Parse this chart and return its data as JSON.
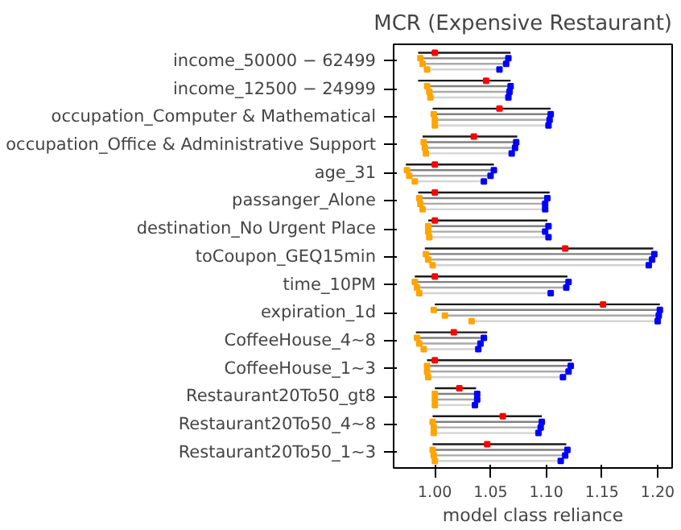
{
  "chart_data": {
    "type": "bar",
    "orientation": "horizontal",
    "title": "MCR (Expensive Restaurant)",
    "xlabel": "model class reliance",
    "categories": [
      "income_50000 − 62499",
      "income_12500 − 24999",
      "occupation_Computer & Mathematical",
      "occupation_Office & Administrative Support",
      "age_31",
      "passanger_Alone",
      "destination_No Urgent Place",
      "toCoupon_GEQ15min",
      "time_10PM",
      "expiration_1d",
      "CoffeeHouse_4~8",
      "CoffeeHouse_1~3",
      "Restaurant20To50_gt8",
      "Restaurant20To50_4~8",
      "Restaurant20To50_1~3"
    ],
    "xlim": [
      0.963,
      1.213
    ],
    "xticks": [
      {
        "value": 1.0,
        "label": "1.00"
      },
      {
        "value": 1.05,
        "label": "1.05"
      },
      {
        "value": 1.1,
        "label": "1.10"
      },
      {
        "value": 1.15,
        "label": "1.15"
      },
      {
        "value": 1.2,
        "label": "1.20"
      }
    ],
    "grid": false,
    "series": [
      {
        "color": "#1a1a1a",
        "base": [
          0.985,
          0.985,
          0.998,
          0.989,
          0.974,
          0.985,
          0.994,
          0.991,
          0.982,
          1.0,
          0.983,
          0.993,
          1.0,
          0.998,
          0.998
        ],
        "values": [
          0.083,
          0.083,
          0.106,
          0.085,
          0.079,
          0.118,
          0.107,
          0.205,
          0.137,
          0.202,
          0.064,
          0.13,
          0.037,
          0.098,
          0.12
        ]
      },
      {
        "type": "scatter",
        "color": "#ff0000",
        "values": [
          1.0,
          1.046,
          1.058,
          1.035,
          1.0,
          1.0,
          1.0,
          1.117,
          1.0,
          1.151,
          1.017,
          1.0,
          1.022,
          1.061,
          1.047
        ]
      },
      {
        "color": "#808080",
        "base": [
          0.987,
          0.993,
          0.999,
          0.99,
          0.975,
          0.986,
          0.994,
          0.992,
          0.982,
          0.999,
          0.984,
          0.993,
          1.0,
          0.998,
          0.998
        ],
        "values": [
          0.079,
          0.075,
          0.105,
          0.083,
          0.078,
          0.115,
          0.108,
          0.205,
          0.138,
          0.203,
          0.06,
          0.129,
          0.038,
          0.098,
          0.121
        ]
      },
      {
        "type": "scatter",
        "color": "#ffa500",
        "values": [
          0.987,
          0.993,
          0.999,
          0.99,
          0.975,
          0.986,
          0.994,
          0.992,
          0.982,
          0.999,
          0.984,
          0.993,
          1.0,
          0.998,
          0.998
        ]
      },
      {
        "type": "scatter",
        "color": "#0000ff",
        "values": [
          1.066,
          1.068,
          1.104,
          1.073,
          1.053,
          1.101,
          1.102,
          1.197,
          1.12,
          1.202,
          1.044,
          1.122,
          1.038,
          1.096,
          1.119
        ]
      },
      {
        "color": "#a9a9a9",
        "base": [
          0.989,
          0.995,
          1.0,
          0.991,
          0.977,
          0.987,
          0.994,
          0.994,
          0.984,
          1.009,
          0.986,
          0.993,
          1.0,
          0.999,
          0.999
        ],
        "values": [
          0.075,
          0.072,
          0.103,
          0.081,
          0.073,
          0.112,
          0.105,
          0.201,
          0.134,
          0.192,
          0.055,
          0.127,
          0.038,
          0.096,
          0.118
        ]
      },
      {
        "type": "scatter",
        "color": "#ffa500",
        "values": [
          0.989,
          0.995,
          1.0,
          0.991,
          0.977,
          0.987,
          0.994,
          0.994,
          0.984,
          1.009,
          0.986,
          0.993,
          1.0,
          0.999,
          0.999
        ]
      },
      {
        "type": "scatter",
        "color": "#0000ff",
        "values": [
          1.064,
          1.067,
          1.103,
          1.072,
          1.05,
          1.099,
          1.099,
          1.195,
          1.118,
          1.201,
          1.041,
          1.12,
          1.038,
          1.095,
          1.117
        ]
      },
      {
        "color": "#d3d3d3",
        "base": [
          0.993,
          0.996,
          1.0,
          0.992,
          0.982,
          0.989,
          0.995,
          0.998,
          0.986,
          1.033,
          0.99,
          0.994,
          1.0,
          0.999,
          1.0
        ],
        "values": [
          0.065,
          0.07,
          0.102,
          0.077,
          0.062,
          0.11,
          0.107,
          0.194,
          0.118,
          0.167,
          0.049,
          0.121,
          0.036,
          0.094,
          0.113
        ]
      },
      {
        "type": "scatter",
        "color": "#ffa500",
        "values": [
          0.993,
          0.996,
          1.0,
          0.992,
          0.982,
          0.989,
          0.995,
          0.998,
          0.986,
          1.033,
          0.99,
          0.994,
          1.0,
          0.999,
          1.0
        ]
      },
      {
        "type": "scatter",
        "color": "#0000ff",
        "values": [
          1.058,
          1.066,
          1.102,
          1.069,
          1.044,
          1.099,
          1.102,
          1.192,
          1.104,
          1.2,
          1.039,
          1.115,
          1.036,
          1.093,
          1.113
        ]
      }
    ]
  }
}
